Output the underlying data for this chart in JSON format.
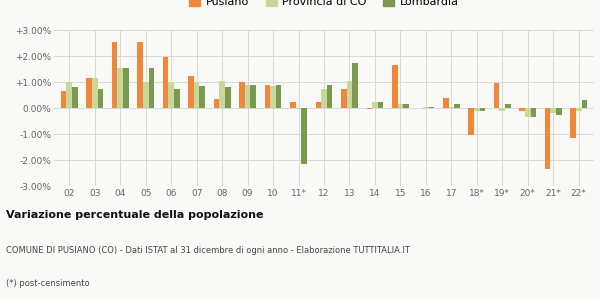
{
  "categories": [
    "02",
    "03",
    "04",
    "05",
    "06",
    "07",
    "08",
    "09",
    "10",
    "11*",
    "12",
    "13",
    "14",
    "15",
    "16",
    "17",
    "18*",
    "19*",
    "20*",
    "21*",
    "22*"
  ],
  "pusiano": [
    0.65,
    1.15,
    2.55,
    2.55,
    1.95,
    1.25,
    0.35,
    1.0,
    0.9,
    0.25,
    0.25,
    0.75,
    -0.02,
    1.65,
    0.0,
    0.4,
    -1.05,
    0.95,
    -0.1,
    -2.35,
    -1.15
  ],
  "provincia_co": [
    1.0,
    1.15,
    1.55,
    1.0,
    1.0,
    1.0,
    1.05,
    0.9,
    0.85,
    -0.05,
    0.75,
    1.05,
    0.25,
    0.15,
    0.05,
    0.05,
    -0.1,
    -0.1,
    -0.35,
    -0.2,
    -0.1
  ],
  "lombardia": [
    0.8,
    0.75,
    1.55,
    1.55,
    0.75,
    0.85,
    0.8,
    0.9,
    0.9,
    -2.15,
    0.9,
    1.75,
    0.25,
    0.15,
    0.05,
    0.15,
    -0.1,
    0.15,
    -0.35,
    -0.25,
    0.3
  ],
  "color_pusiano": "#f0883c",
  "color_provincia": "#c8d89c",
  "color_lombardia": "#7a9a50",
  "bg_color": "#f9f9f7",
  "grid_color": "#d8d8d8",
  "title": "Variazione percentuale della popolazione",
  "subtitle": "COMUNE DI PUSIANO (CO) - Dati ISTAT al 31 dicembre di ogni anno - Elaborazione TUTTITALIA.IT",
  "footnote": "(*) post-censimento",
  "ylim": [
    -3.0,
    3.0
  ],
  "yticks": [
    -3.0,
    -2.0,
    -1.0,
    0.0,
    1.0,
    2.0,
    3.0
  ],
  "ytick_labels": [
    "-3.00%",
    "-2.00%",
    "-1.00%",
    "0.00%",
    "+1.00%",
    "+2.00%",
    "+3.00%"
  ]
}
